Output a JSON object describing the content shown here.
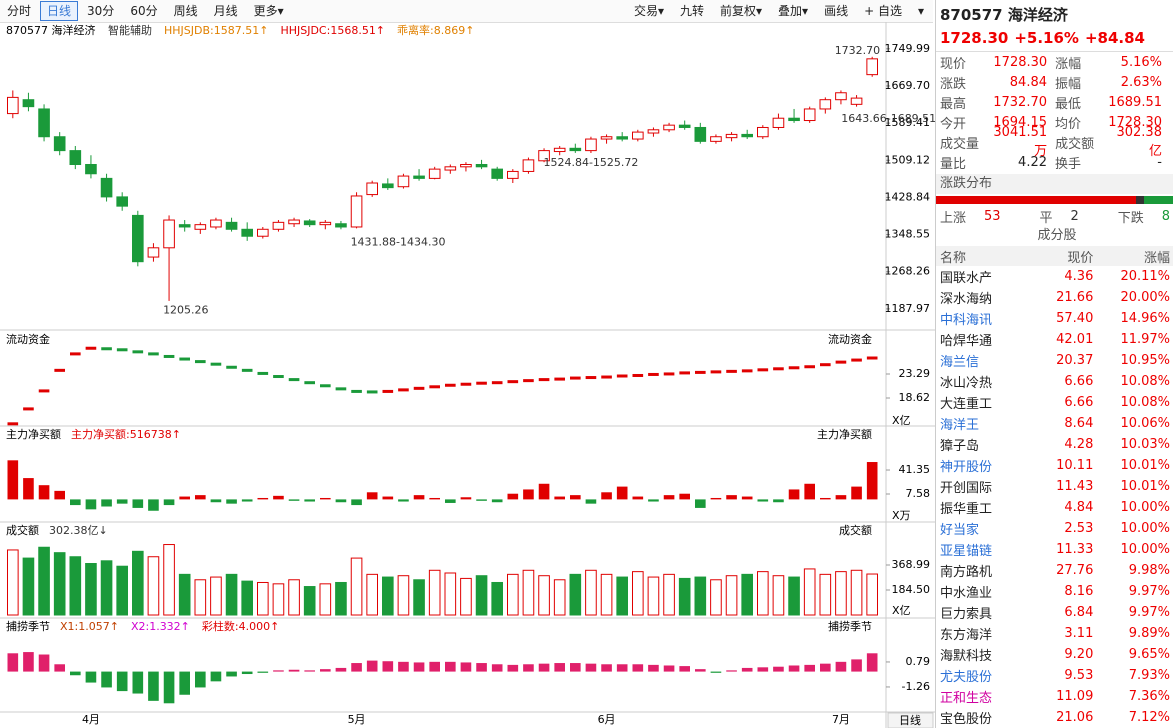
{
  "toolbar": {
    "left": [
      "分时",
      "日线",
      "30分",
      "60分",
      "周线",
      "月线",
      "更多▾"
    ],
    "active": 1,
    "right": [
      "交易▾",
      "九转",
      "前复权▾",
      "叠加▾",
      "画线",
      "+ 自选",
      "▾"
    ]
  },
  "bottom_button": "日线",
  "chart_data": [
    {
      "type": "candlestick",
      "title": "870577 海洋经济",
      "legend": [
        {
          "text": "智能辅助",
          "color": "#333"
        },
        {
          "text": "HHJSJDB:1587.51↑",
          "color": "#e08000"
        },
        {
          "text": "HHJSJDC:1568.51↑",
          "color": "#e00000"
        },
        {
          "text": "乖离率:8.869↑",
          "color": "#e08000"
        }
      ],
      "up_color": "#e00000",
      "down_color": "#1a9a3a",
      "categories": [
        null,
        null,
        null,
        null,
        null,
        "4月",
        null,
        null,
        null,
        null,
        null,
        null,
        null,
        null,
        null,
        null,
        null,
        null,
        null,
        null,
        null,
        null,
        "5月",
        null,
        null,
        null,
        null,
        null,
        null,
        null,
        null,
        null,
        null,
        null,
        null,
        null,
        null,
        null,
        "6月",
        null,
        null,
        null,
        null,
        null,
        null,
        null,
        null,
        null,
        null,
        null,
        null,
        null,
        null,
        "7月",
        null,
        null
      ],
      "candles": [
        [
          1610,
          1660,
          1600,
          1645
        ],
        [
          1640,
          1655,
          1615,
          1625
        ],
        [
          1620,
          1630,
          1550,
          1560
        ],
        [
          1560,
          1570,
          1520,
          1530
        ],
        [
          1530,
          1540,
          1490,
          1500
        ],
        [
          1500,
          1520,
          1470,
          1480
        ],
        [
          1470,
          1480,
          1420,
          1430
        ],
        [
          1430,
          1440,
          1400,
          1410
        ],
        [
          1390,
          1400,
          1280,
          1290
        ],
        [
          1300,
          1330,
          1290,
          1320
        ],
        [
          1320,
          1390,
          1205.26,
          1380
        ],
        [
          1370,
          1380,
          1355,
          1365
        ],
        [
          1360,
          1375,
          1350,
          1370
        ],
        [
          1365,
          1385,
          1360,
          1380
        ],
        [
          1375,
          1385,
          1355,
          1360
        ],
        [
          1360,
          1375,
          1335,
          1345
        ],
        [
          1345,
          1365,
          1340,
          1360
        ],
        [
          1360,
          1380,
          1355,
          1375
        ],
        [
          1372,
          1385,
          1365,
          1380
        ],
        [
          1378,
          1382,
          1365,
          1370
        ],
        [
          1370,
          1380,
          1360,
          1375
        ],
        [
          1372,
          1378,
          1360,
          1365
        ],
        [
          1365,
          1440,
          1362,
          1432
        ],
        [
          1435,
          1465,
          1430,
          1460
        ],
        [
          1458,
          1470,
          1445,
          1450
        ],
        [
          1452,
          1480,
          1448,
          1475
        ],
        [
          1475,
          1490,
          1465,
          1470
        ],
        [
          1470,
          1495,
          1468,
          1490
        ],
        [
          1488,
          1500,
          1480,
          1495
        ],
        [
          1495,
          1505,
          1485,
          1500
        ],
        [
          1500,
          1510,
          1490,
          1495
        ],
        [
          1490,
          1495,
          1465,
          1470
        ],
        [
          1470,
          1490,
          1460,
          1485
        ],
        [
          1485,
          1515,
          1480,
          1510
        ],
        [
          1508,
          1535,
          1505,
          1530
        ],
        [
          1528,
          1540,
          1520,
          1535
        ],
        [
          1535,
          1545,
          1525,
          1530
        ],
        [
          1530,
          1560,
          1524.84,
          1555
        ],
        [
          1555,
          1565,
          1545,
          1560
        ],
        [
          1560,
          1570,
          1550,
          1555
        ],
        [
          1555,
          1575,
          1550,
          1570
        ],
        [
          1568,
          1580,
          1560,
          1575
        ],
        [
          1575,
          1590,
          1570,
          1585
        ],
        [
          1585,
          1595,
          1575,
          1580
        ],
        [
          1580,
          1590,
          1545,
          1550
        ],
        [
          1550,
          1565,
          1545,
          1560
        ],
        [
          1558,
          1570,
          1550,
          1565
        ],
        [
          1565,
          1575,
          1555,
          1560
        ],
        [
          1560,
          1585,
          1555,
          1580
        ],
        [
          1580,
          1610,
          1575,
          1600
        ],
        [
          1600,
          1620,
          1590,
          1595
        ],
        [
          1595,
          1625,
          1590,
          1620
        ],
        [
          1620,
          1645,
          1610,
          1640
        ],
        [
          1640,
          1660,
          1630,
          1655
        ],
        [
          1630,
          1650,
          1625,
          1643.46
        ],
        [
          1694.15,
          1732.7,
          1689.51,
          1728.3
        ]
      ],
      "ylim": [
        1164,
        1769
      ],
      "yticks": [
        1749.99,
        {
          "value": 1669.7,
          "label": "1669.70"
        },
        1589.41,
        1509.12,
        1428.84,
        1348.55,
        1268.26,
        1187.97
      ],
      "annotations": [
        "1732.70",
        "1643.66-1689.51",
        "1524.84-1525.72",
        "1431.88-1434.30",
        "1205.26"
      ]
    },
    {
      "type": "flow",
      "title": "流动资金",
      "unit": "X亿",
      "color_up": "#e00000",
      "color_down": "#1a9a3a",
      "values": [
        13.6,
        16.5,
        20,
        24,
        27.2,
        28.3,
        28.2,
        28,
        27.6,
        27.2,
        26.7,
        26.2,
        25.7,
        25.2,
        24.6,
        24,
        23.4,
        22.8,
        22.2,
        21.6,
        21,
        20.4,
        19.9,
        19.8,
        19.9,
        20.2,
        20.5,
        20.8,
        21.1,
        21.3,
        21.5,
        21.6,
        21.8,
        22,
        22.2,
        22.3,
        22.5,
        22.6,
        22.7,
        22.9,
        23,
        23.2,
        23.3,
        23.5,
        23.6,
        23.7,
        23.8,
        23.9,
        24.1,
        24.3,
        24.5,
        24.7,
        25.1,
        25.6,
        26,
        26.4
      ],
      "ylim": [
        13.37,
        28.93
      ],
      "yticks": [
        23.29,
        18.62
      ]
    },
    {
      "type": "bar",
      "title": "主力净买额",
      "legend": [
        {
          "text": "主力净买额:516738↑",
          "color": "#e00000"
        }
      ],
      "unit": "X万",
      "color_up": "#e00000",
      "color_down": "#1a9a3a",
      "values": [
        55,
        30,
        20,
        12,
        -8,
        -14,
        -10,
        -6,
        -12,
        -16,
        -8,
        4,
        6,
        -4,
        -6,
        -3,
        2,
        5,
        -2,
        -3,
        2,
        -4,
        -8,
        10,
        4,
        -3,
        6,
        2,
        -5,
        3,
        -2,
        -4,
        8,
        14,
        22,
        4,
        6,
        -6,
        10,
        18,
        4,
        -3,
        6,
        8,
        -12,
        2,
        6,
        4,
        -3,
        -4,
        14,
        22,
        2,
        6,
        18,
        52.6
      ],
      "ylim": [
        -29,
        83.6
      ],
      "yticks": [
        41.35,
        7.58
      ]
    },
    {
      "type": "volume",
      "title": "成交额",
      "legend": [
        {
          "text": "302.38亿↓",
          "color": "#333"
        }
      ],
      "unit": "X亿",
      "values": [
        480,
        420,
        500,
        460,
        430,
        380,
        400,
        360,
        470,
        430,
        520,
        300,
        260,
        280,
        300,
        250,
        240,
        230,
        260,
        210,
        230,
        240,
        420,
        300,
        280,
        290,
        260,
        330,
        310,
        270,
        290,
        240,
        300,
        330,
        290,
        260,
        300,
        330,
        300,
        280,
        320,
        280,
        300,
        270,
        280,
        260,
        290,
        300,
        320,
        290,
        280,
        340,
        300,
        320,
        330,
        302.38
      ],
      "ylim": [
        0,
        553.5
      ],
      "yticks": [
        368.99,
        {
          "value": 184.5,
          "label": "184.50"
        }
      ]
    },
    {
      "type": "bar",
      "title": "捕捞季节",
      "legend": [
        {
          "text": "X1:1.057↑",
          "color": "#c04000"
        },
        {
          "text": "X2:1.332↑",
          "color": "#d000d0"
        },
        {
          "text": "彩柱数:4.000↑",
          "color": "#e00000"
        }
      ],
      "color_up": "#e0206a",
      "color_down": "#1a9a3a",
      "values": [
        1.5,
        1.6,
        1.4,
        0.6,
        -0.3,
        -0.9,
        -1.3,
        -1.6,
        -1.8,
        -2.4,
        -2.6,
        -1.9,
        -1.3,
        -0.8,
        -0.4,
        -0.2,
        -0.1,
        0.1,
        0.15,
        0.1,
        0.2,
        0.3,
        0.7,
        0.9,
        0.85,
        0.8,
        0.75,
        0.8,
        0.8,
        0.75,
        0.7,
        0.6,
        0.55,
        0.6,
        0.65,
        0.7,
        0.7,
        0.65,
        0.6,
        0.6,
        0.6,
        0.55,
        0.5,
        0.45,
        0.2,
        -0.1,
        0.1,
        0.3,
        0.35,
        0.4,
        0.5,
        0.55,
        0.65,
        0.8,
        1,
        1.5
      ],
      "ylim": [
        -3.15,
        3
      ],
      "yticks": [
        0.79,
        -1.26
      ]
    }
  ],
  "quote": {
    "title": "870577 海洋经济",
    "price": "1728.30",
    "change_pct": "+5.16%",
    "change": "+84.84",
    "rows": [
      [
        "现价",
        "1728.30",
        "涨幅",
        "5.16%"
      ],
      [
        "涨跌",
        "84.84",
        "振幅",
        "2.63%"
      ],
      [
        "最高",
        "1732.70",
        "最低",
        "1689.51"
      ],
      [
        "今开",
        "1694.15",
        "均价",
        "1728.30"
      ],
      [
        "成交量",
        "3041.51万",
        "成交额",
        "302.38亿"
      ],
      [
        "量比",
        "4.22",
        "换手",
        "-"
      ]
    ],
    "dist_title": "涨跌分布",
    "dist": [
      {
        "label": "上涨",
        "count": 53,
        "color": "#e00000"
      },
      {
        "label": "平",
        "count": 2,
        "color": "#333333"
      },
      {
        "label": "下跌",
        "count": 8,
        "color": "#1a9a3a"
      }
    ],
    "comp_title": "成分股",
    "comp_header": [
      "名称",
      "现价",
      "涨幅"
    ],
    "comp": [
      {
        "name": "国联水产",
        "price": "4.36",
        "pct": "20.11%",
        "color": "#222"
      },
      {
        "name": "深水海纳",
        "price": "21.66",
        "pct": "20.00%",
        "color": "#222"
      },
      {
        "name": "中科海讯",
        "price": "57.40",
        "pct": "14.96%",
        "color": "#2a6fd6"
      },
      {
        "name": "哈焊华通",
        "price": "42.01",
        "pct": "11.97%",
        "color": "#222"
      },
      {
        "name": "海兰信",
        "price": "20.37",
        "pct": "10.95%",
        "color": "#2a6fd6"
      },
      {
        "name": "冰山冷热",
        "price": "6.66",
        "pct": "10.08%",
        "color": "#222"
      },
      {
        "name": "大连重工",
        "price": "6.66",
        "pct": "10.08%",
        "color": "#222"
      },
      {
        "name": "海洋王",
        "price": "8.64",
        "pct": "10.06%",
        "color": "#2a6fd6"
      },
      {
        "name": "獐子岛",
        "price": "4.28",
        "pct": "10.03%",
        "color": "#222"
      },
      {
        "name": "神开股份",
        "price": "10.11",
        "pct": "10.01%",
        "color": "#2a6fd6"
      },
      {
        "name": "开创国际",
        "price": "11.43",
        "pct": "10.01%",
        "color": "#222"
      },
      {
        "name": "振华重工",
        "price": "4.84",
        "pct": "10.00%",
        "color": "#222"
      },
      {
        "name": "好当家",
        "price": "2.53",
        "pct": "10.00%",
        "color": "#2a6fd6"
      },
      {
        "name": "亚星锚链",
        "price": "11.33",
        "pct": "10.00%",
        "color": "#2a6fd6"
      },
      {
        "name": "南方路机",
        "price": "27.76",
        "pct": "9.98%",
        "color": "#222"
      },
      {
        "name": "中水渔业",
        "price": "8.16",
        "pct": "9.97%",
        "color": "#222"
      },
      {
        "name": "巨力索具",
        "price": "6.84",
        "pct": "9.97%",
        "color": "#222"
      },
      {
        "name": "东方海洋",
        "price": "3.11",
        "pct": "9.89%",
        "color": "#222"
      },
      {
        "name": "海默科技",
        "price": "9.20",
        "pct": "9.65%",
        "color": "#222"
      },
      {
        "name": "尤夫股份",
        "price": "9.53",
        "pct": "7.93%",
        "color": "#2a6fd6"
      },
      {
        "name": "正和生态",
        "price": "11.09",
        "pct": "7.36%",
        "color": "#d000a0"
      },
      {
        "name": "宝色股份",
        "price": "21.06",
        "pct": "7.12%",
        "color": "#222"
      }
    ]
  }
}
